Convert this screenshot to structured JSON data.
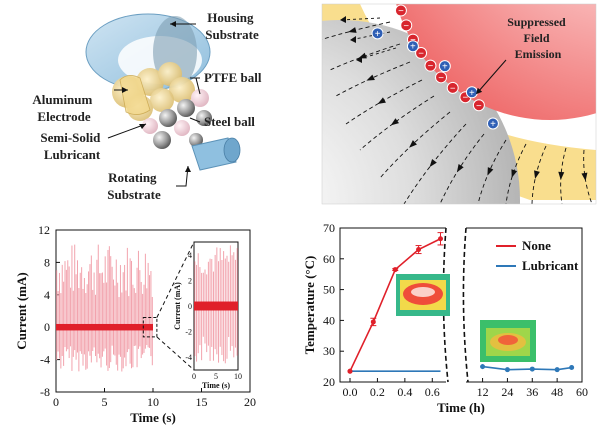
{
  "device": {
    "labels": {
      "housing": [
        "Housing",
        "Substrate"
      ],
      "ptfe": "PTFE ball",
      "aluminum": [
        "Aluminum",
        "Electrode"
      ],
      "steel": "Steel ball",
      "lubricant": [
        "Semi-Solid",
        "Lubricant"
      ],
      "rotating": [
        "Rotating",
        "Substrate"
      ]
    }
  },
  "field": {
    "annotation": [
      "Suppressed",
      "Field",
      "Emission"
    ],
    "negative_symbol": "−",
    "positive_symbol": "+",
    "negative_charges": 12,
    "positive_charges": 5
  },
  "chart_data": [
    {
      "type": "line",
      "xlabel": "Time (s)",
      "ylabel": "Current (mA)",
      "xlim": [
        0,
        20
      ],
      "ylim": [
        -8,
        12
      ],
      "xticks": [
        0,
        5,
        10,
        15,
        20
      ],
      "yticks": [
        -8,
        -4,
        0,
        4,
        8,
        12
      ],
      "signal": {
        "x_range": [
          0,
          10
        ],
        "peak_max": 10.5,
        "peak_min": -5.5,
        "baseline": 0,
        "color": "#f2a3ad",
        "baseline_color": "#e0202a"
      },
      "inset": {
        "xlabel": "Time (s)",
        "ylabel": "Current (mA)",
        "xlim": [
          0,
          10
        ],
        "ylim": [
          -5,
          5
        ],
        "xticks": [
          0,
          5,
          10
        ],
        "yticks": [
          -4,
          -2,
          0,
          2,
          4
        ]
      }
    },
    {
      "type": "line",
      "xlabel": "Time (h)",
      "ylabel": "Temperature (°C)",
      "ylim": [
        20,
        70
      ],
      "yticks": [
        20,
        30,
        40,
        50,
        60,
        70
      ],
      "xticks_left": [
        "0.0",
        "0.2",
        "0.4",
        "0.6"
      ],
      "xticks_right": [
        "12",
        "24",
        "36",
        "48",
        "60"
      ],
      "series": [
        {
          "name": "None",
          "color": "#e0202a",
          "x": [
            0.0,
            0.17,
            0.33,
            0.5,
            0.66
          ],
          "y": [
            23.5,
            39.5,
            56.5,
            63,
            66.5
          ],
          "err": [
            0,
            1.2,
            0.3,
            1.3,
            2.0
          ]
        },
        {
          "name": "Lubricant",
          "color": "#2e78b8",
          "x_left": [
            0.0,
            0.17,
            0.33,
            0.5,
            0.66
          ],
          "y_left": [
            23.5,
            23.5,
            23.5,
            23.5,
            23.5
          ],
          "x_right": [
            12,
            24,
            36,
            48,
            55
          ],
          "y_right": [
            25,
            24,
            24.2,
            24,
            24.7
          ],
          "err_right": [
            0.8,
            0.4,
            0.4,
            0.4,
            0.5
          ]
        }
      ]
    }
  ]
}
